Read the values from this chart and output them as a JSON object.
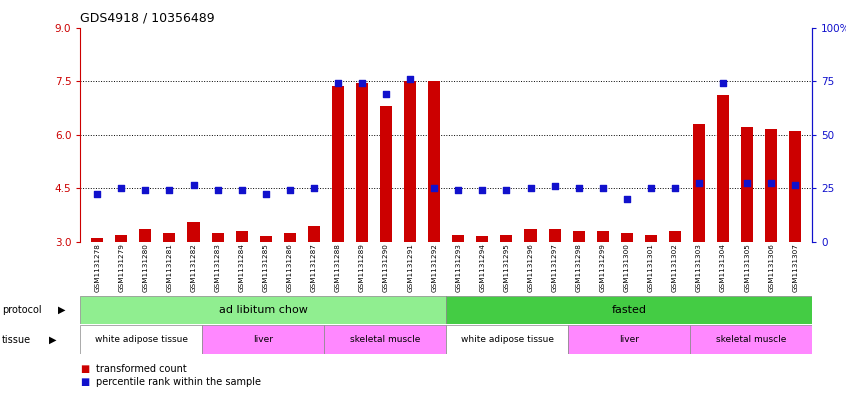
{
  "title": "GDS4918 / 10356489",
  "samples": [
    "GSM1131278",
    "GSM1131279",
    "GSM1131280",
    "GSM1131281",
    "GSM1131282",
    "GSM1131283",
    "GSM1131284",
    "GSM1131285",
    "GSM1131286",
    "GSM1131287",
    "GSM1131288",
    "GSM1131289",
    "GSM1131290",
    "GSM1131291",
    "GSM1131292",
    "GSM1131293",
    "GSM1131294",
    "GSM1131295",
    "GSM1131296",
    "GSM1131297",
    "GSM1131298",
    "GSM1131299",
    "GSM1131300",
    "GSM1131301",
    "GSM1131302",
    "GSM1131303",
    "GSM1131304",
    "GSM1131305",
    "GSM1131306",
    "GSM1131307"
  ],
  "red_bars": [
    3.1,
    3.2,
    3.35,
    3.25,
    3.55,
    3.25,
    3.3,
    3.15,
    3.25,
    3.45,
    7.35,
    7.45,
    6.8,
    7.5,
    7.5,
    3.2,
    3.15,
    3.2,
    3.35,
    3.35,
    3.3,
    3.3,
    3.25,
    3.2,
    3.3,
    6.3,
    7.1,
    6.2,
    6.15,
    6.1
  ],
  "blue_markers": [
    4.35,
    4.5,
    4.45,
    4.45,
    4.6,
    4.45,
    4.45,
    4.35,
    4.45,
    4.5,
    7.45,
    7.45,
    7.15,
    7.55,
    4.5,
    4.45,
    4.45,
    4.45,
    4.5,
    4.55,
    4.5,
    4.5,
    4.2,
    4.5,
    4.5,
    4.65,
    7.45,
    4.65,
    4.65,
    4.6
  ],
  "ylim_left": [
    3,
    9
  ],
  "yticks_left": [
    3,
    4.5,
    6,
    7.5,
    9
  ],
  "yticks_right_labels": [
    "0",
    "25",
    "50",
    "75",
    "100%"
  ],
  "hlines": [
    4.5,
    6.0,
    7.5
  ],
  "protocol_groups": [
    {
      "label": "ad libitum chow",
      "start": 0,
      "end": 14,
      "color": "#90EE90"
    },
    {
      "label": "fasted",
      "start": 15,
      "end": 29,
      "color": "#44CC44"
    }
  ],
  "tissue_groups": [
    {
      "label": "white adipose tissue",
      "start": 0,
      "end": 4,
      "color": "#FFFFFF"
    },
    {
      "label": "liver",
      "start": 5,
      "end": 9,
      "color": "#FF88FF"
    },
    {
      "label": "skeletal muscle",
      "start": 10,
      "end": 14,
      "color": "#FF88FF"
    },
    {
      "label": "white adipose tissue",
      "start": 15,
      "end": 19,
      "color": "#FFFFFF"
    },
    {
      "label": "liver",
      "start": 20,
      "end": 24,
      "color": "#FF88FF"
    },
    {
      "label": "skeletal muscle",
      "start": 25,
      "end": 29,
      "color": "#FF88FF"
    }
  ],
  "bar_color": "#CC0000",
  "marker_color": "#1111CC",
  "axis_color_left": "#CC0000",
  "axis_color_right": "#1111CC",
  "plot_bg_color": "#FFFFFF",
  "tick_bg_color": "#D8D8D8"
}
